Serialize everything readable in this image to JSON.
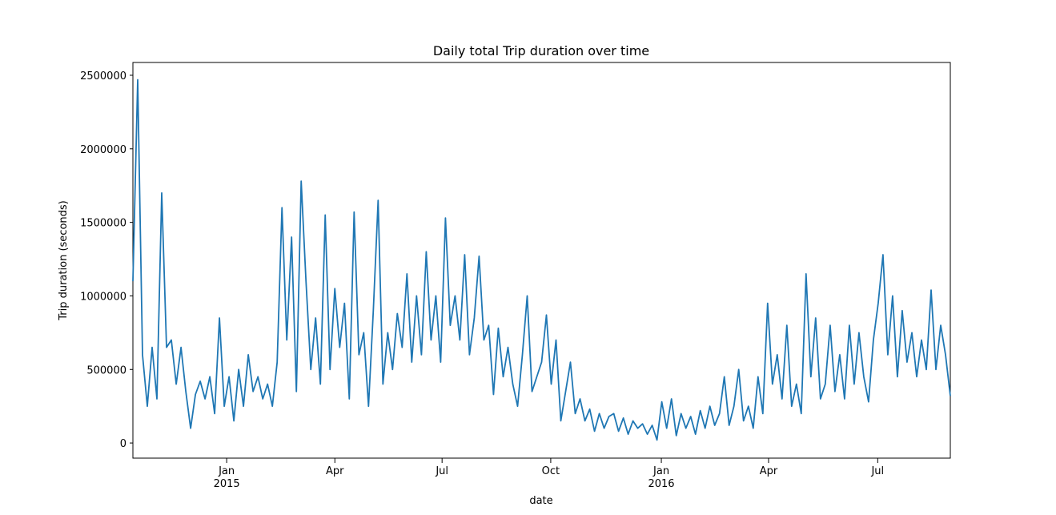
{
  "chart_data": {
    "type": "line",
    "title": "Daily total Trip duration over time",
    "x_label": "date",
    "y_label": "Trip duration (seconds)",
    "series": [
      {
        "name": "Trip duration",
        "color": "#1f77b4",
        "values": [
          1100000,
          2470000,
          600000,
          250000,
          650000,
          300000,
          1700000,
          650000,
          700000,
          400000,
          650000,
          350000,
          100000,
          330000,
          420000,
          300000,
          450000,
          200000,
          850000,
          250000,
          450000,
          150000,
          500000,
          250000,
          600000,
          350000,
          450000,
          300000,
          400000,
          250000,
          550000,
          1600000,
          700000,
          1400000,
          350000,
          1780000,
          1100000,
          500000,
          850000,
          400000,
          1550000,
          500000,
          1050000,
          650000,
          950000,
          300000,
          1570000,
          600000,
          750000,
          250000,
          900000,
          1650000,
          400000,
          750000,
          500000,
          880000,
          650000,
          1150000,
          550000,
          1000000,
          600000,
          1300000,
          700000,
          1000000,
          550000,
          1530000,
          800000,
          1000000,
          700000,
          1280000,
          600000,
          850000,
          1270000,
          700000,
          800000,
          330000,
          780000,
          450000,
          650000,
          400000,
          250000,
          600000,
          1000000,
          350000,
          450000,
          550000,
          870000,
          400000,
          700000,
          150000,
          350000,
          550000,
          200000,
          300000,
          150000,
          230000,
          80000,
          200000,
          100000,
          180000,
          200000,
          80000,
          170000,
          60000,
          150000,
          100000,
          130000,
          60000,
          120000,
          20000,
          280000,
          100000,
          300000,
          50000,
          200000,
          100000,
          180000,
          60000,
          220000,
          100000,
          250000,
          120000,
          200000,
          450000,
          120000,
          250000,
          500000,
          150000,
          250000,
          100000,
          450000,
          200000,
          950000,
          400000,
          600000,
          300000,
          800000,
          250000,
          400000,
          200000,
          1150000,
          450000,
          850000,
          300000,
          400000,
          800000,
          350000,
          600000,
          300000,
          800000,
          400000,
          750000,
          450000,
          280000,
          700000,
          950000,
          1280000,
          600000,
          1000000,
          450000,
          900000,
          550000,
          750000,
          450000,
          700000,
          500000,
          1040000,
          500000,
          800000,
          600000,
          320000
        ]
      }
    ],
    "xlim": [
      0,
      170
    ],
    "xticks": [
      {
        "value": 19.5,
        "label": "Jan 2015"
      },
      {
        "value": 42,
        "label": "Apr"
      },
      {
        "value": 64.3,
        "label": "Jul"
      },
      {
        "value": 86.9,
        "label": "Oct"
      },
      {
        "value": 109.9,
        "label": "Jan 2016"
      },
      {
        "value": 132.2,
        "label": "Apr"
      },
      {
        "value": 154.9,
        "label": "Jul"
      }
    ],
    "ylim": [
      -103000,
      2587000
    ],
    "yticks": [
      0,
      500000,
      1000000,
      1500000,
      2000000,
      2500000
    ]
  }
}
